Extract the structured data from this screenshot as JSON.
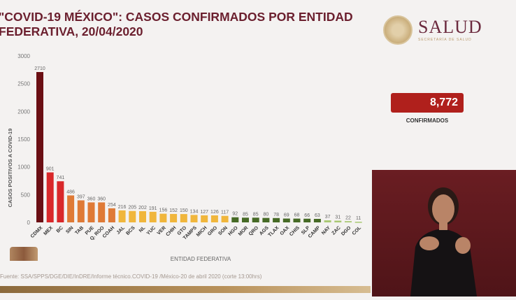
{
  "title": "\"COVID-19 MÉXICO\": CASOS CONFIRMADOS POR ENTIDAD FEDERATIVA, 20/04/2020",
  "title_line1": "\"COVID-19 MÉXICO\": CASOS CONFIRMADOS POR ENTIDAD",
  "title_line2": "FEDERATIVA, 20/04/2020",
  "logo": {
    "name": "SALUD",
    "subtitle": "SECRETARÍA DE SALUD"
  },
  "total": {
    "value": "8,772",
    "label": "CONFIRMADOS"
  },
  "source": "Fuente: SSA/SPPS/DGE/DIE/InDRE/Informe técnico.COVID-19 /México-20 de abril 2020 (corte 13:00hrs)",
  "chart_data": {
    "type": "bar",
    "title": "\"COVID-19 MÉXICO\": CASOS CONFIRMADOS POR ENTIDAD FEDERATIVA, 20/04/2020",
    "xlabel": "ENTIDAD FEDERATIVA",
    "ylabel": "CASOS POSITIVOS A COVID-19",
    "ylim": [
      0,
      3000
    ],
    "yticks": [
      0,
      500,
      1000,
      1500,
      2000,
      2500,
      3000
    ],
    "categories": [
      "CDMX",
      "MEX",
      "BC",
      "SIN",
      "TAB",
      "PUE",
      "Q. ROO",
      "COAH",
      "JAL",
      "BCS",
      "NL",
      "YUC",
      "VER",
      "CHIH",
      "GTO",
      "TAMPS",
      "MICH",
      "GRO",
      "SON",
      "HGO",
      "MOR",
      "QRO",
      "AGS",
      "TLAX",
      "OAX",
      "CHIS",
      "SLP",
      "CAMP",
      "NAY",
      "ZAC",
      "DGO",
      "COL"
    ],
    "values": [
      2710,
      901,
      741,
      486,
      397,
      360,
      360,
      254,
      216,
      205,
      202,
      191,
      156,
      152,
      150,
      134,
      127,
      126,
      117,
      92,
      85,
      85,
      80,
      78,
      69,
      68,
      66,
      63,
      37,
      31,
      22,
      11
    ],
    "colors": [
      "#6b0f14",
      "#d9282a",
      "#d9282a",
      "#df7a36",
      "#df7a36",
      "#df7a36",
      "#df7a36",
      "#df7a36",
      "#f0b63c",
      "#f0b63c",
      "#f0b63c",
      "#f0b63c",
      "#f0b63c",
      "#f0b63c",
      "#f0b63c",
      "#f0b63c",
      "#f0b63c",
      "#f0b63c",
      "#f0b63c",
      "#466a25",
      "#466a25",
      "#466a25",
      "#466a25",
      "#466a25",
      "#466a25",
      "#466a25",
      "#466a25",
      "#466a25",
      "#a9c873",
      "#a9c873",
      "#a9c873",
      "#a9c873"
    ],
    "grid": false,
    "legend": "none"
  }
}
